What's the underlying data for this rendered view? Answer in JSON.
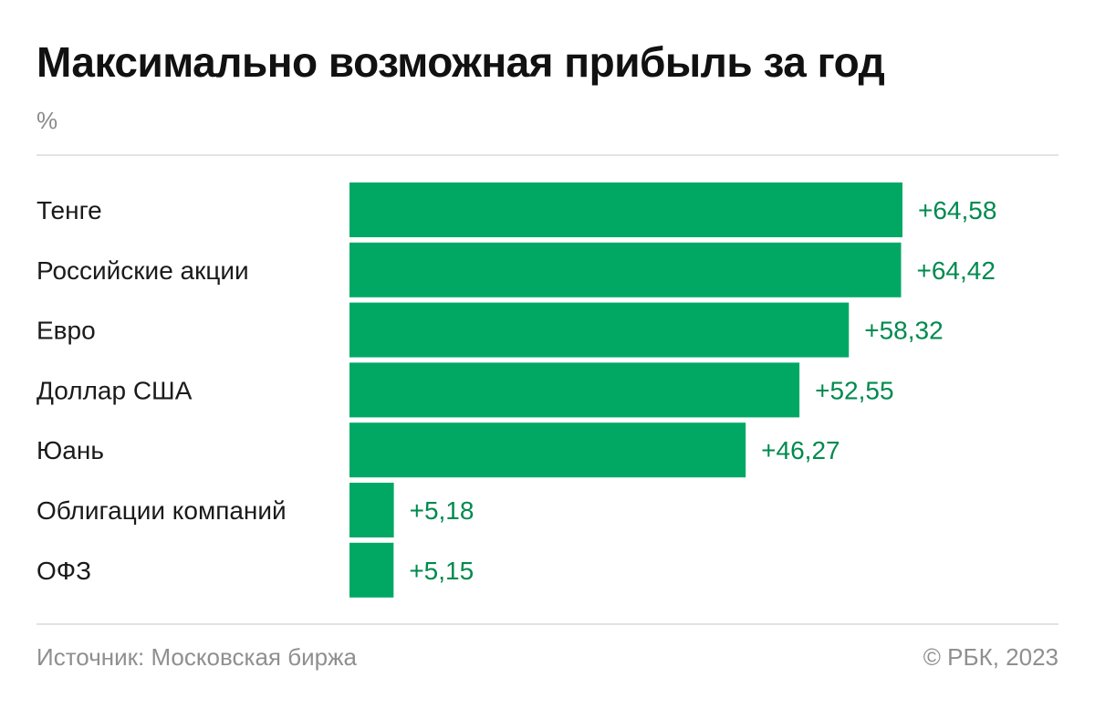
{
  "header": {
    "title": "Максимально возможная прибыль за год",
    "unit": "%"
  },
  "footer": {
    "source": "Источник: Московская биржа",
    "copyright": "© РБК, 2023"
  },
  "colors": {
    "bar": "#00a864",
    "value_label": "#008a4f",
    "category_label": "#1a1a1a"
  },
  "chart_data": {
    "type": "bar",
    "orientation": "horizontal",
    "title": "Максимально возможная прибыль за год",
    "ylabel": "%",
    "grid": false,
    "xlim": [
      0,
      64.58
    ],
    "categories": [
      "Тенге",
      "Российские акции",
      "Евро",
      "Доллар США",
      "Юань",
      "Облигации компаний",
      "ОФЗ"
    ],
    "values": [
      64.58,
      64.42,
      58.32,
      52.55,
      46.27,
      5.18,
      5.15
    ],
    "value_labels": [
      "+64,58",
      "+64,42",
      "+58,32",
      "+52,55",
      "+46,27",
      "+5,18",
      "+5,15"
    ]
  }
}
